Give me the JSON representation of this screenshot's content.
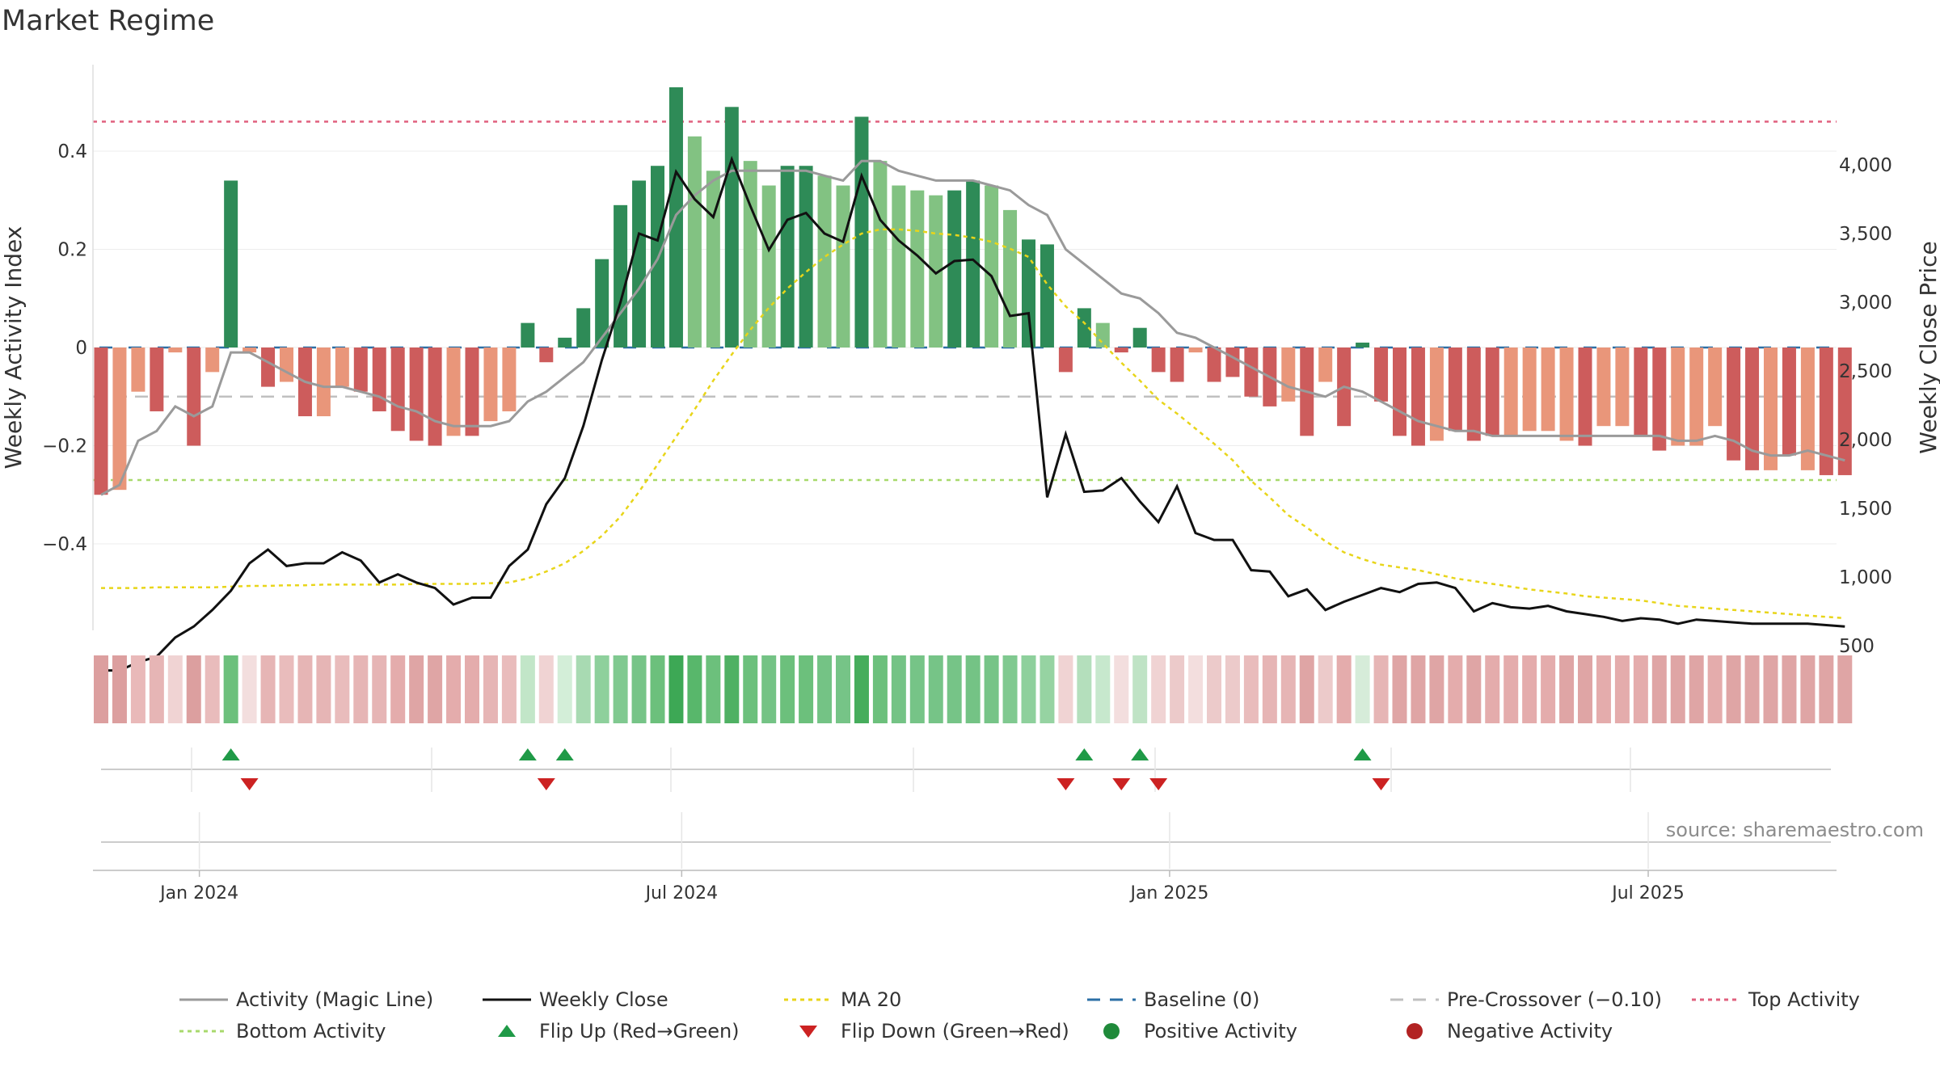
{
  "title": "Market Regime",
  "source": "source: sharemaestro.com",
  "colors": {
    "dark_green": "#2e8b57",
    "light_green": "#82c282",
    "dark_red": "#cd5c5c",
    "light_red": "#e9967a",
    "magic_line": "#9a9a9a",
    "weekly_close": "#111111",
    "ma20": "#e8d51a",
    "baseline": "#2b6fa6",
    "pre_crossover": "#c0c0c0",
    "top_activity": "#e0607e",
    "bottom_activity": "#a8d96c",
    "flip_up": "#1f9a47",
    "flip_down": "#cc2222",
    "positive": "#1f8a3a",
    "negative": "#b22222"
  },
  "chart_data": {
    "type": "bar",
    "title": "Market Regime",
    "ylabel_left": "Weekly Activity Index",
    "ylabel_right": "Weekly Close Price",
    "ylim_left": [
      -0.57,
      0.57
    ],
    "ylim_right": [
      0,
      4300
    ],
    "yticks_left": [
      0.4,
      0.2,
      0,
      -0.2,
      -0.4
    ],
    "yticks_left_labels": [
      "0.4",
      "0.2",
      "0",
      "−0.2",
      "−0.4"
    ],
    "yticks_right": [
      4000,
      3500,
      3000,
      2500,
      2000,
      1500,
      1000,
      500
    ],
    "yticks_right_labels": [
      "4,000",
      "3,500",
      "3,000",
      "2,500",
      "2,000",
      "1,500",
      "1,000",
      "500"
    ],
    "x_tick_labels": [
      "Jan 2024",
      "Jul 2024",
      "Jan 2025",
      "Jul 2025"
    ],
    "x_tick_weeks": [
      5.3,
      31.3,
      57.6,
      83.4
    ],
    "top_activity": 0.46,
    "bottom_activity": -0.27,
    "baseline": 0,
    "pre_crossover": -0.1,
    "activity": [
      -0.3,
      -0.29,
      -0.09,
      -0.13,
      -0.01,
      -0.2,
      -0.05,
      0.34,
      -0.01,
      -0.08,
      -0.07,
      -0.14,
      -0.14,
      -0.08,
      -0.09,
      -0.13,
      -0.17,
      -0.19,
      -0.2,
      -0.18,
      -0.18,
      -0.15,
      -0.13,
      0.05,
      -0.03,
      0.02,
      0.08,
      0.18,
      0.29,
      0.34,
      0.37,
      0.53,
      0.43,
      0.36,
      0.49,
      0.38,
      0.33,
      0.37,
      0.37,
      0.35,
      0.33,
      0.47,
      0.38,
      0.33,
      0.32,
      0.31,
      0.32,
      0.34,
      0.33,
      0.28,
      0.22,
      0.21,
      -0.05,
      0.08,
      0.05,
      -0.01,
      0.04,
      -0.05,
      -0.07,
      -0.01,
      -0.07,
      -0.06,
      -0.1,
      -0.12,
      -0.11,
      -0.18,
      -0.07,
      -0.16,
      0.01,
      -0.11,
      -0.18,
      -0.2,
      -0.19,
      -0.17,
      -0.19,
      -0.18,
      -0.18,
      -0.17,
      -0.17,
      -0.19,
      -0.2,
      -0.16,
      -0.16,
      -0.18,
      -0.21,
      -0.2,
      -0.2,
      -0.16,
      -0.23,
      -0.25,
      -0.25,
      -0.22,
      -0.25,
      -0.26,
      -0.26
    ],
    "shade": [
      "dark",
      "light",
      "light",
      "dark",
      "light",
      "dark",
      "light",
      "dark",
      "light",
      "dark",
      "light",
      "dark",
      "light",
      "light",
      "dark",
      "dark",
      "dark",
      "dark",
      "dark",
      "light",
      "dark",
      "light",
      "light",
      "dark",
      "dark",
      "dark",
      "dark",
      "dark",
      "dark",
      "dark",
      "dark",
      "dark",
      "light",
      "light",
      "dark",
      "light",
      "light",
      "dark",
      "dark",
      "light",
      "light",
      "dark",
      "light",
      "light",
      "light",
      "light",
      "dark",
      "dark",
      "light",
      "light",
      "dark",
      "dark",
      "dark",
      "dark",
      "light",
      "dark",
      "dark",
      "dark",
      "dark",
      "light",
      "dark",
      "dark",
      "dark",
      "dark",
      "light",
      "dark",
      "light",
      "dark",
      "dark",
      "dark",
      "dark",
      "dark",
      "light",
      "dark",
      "dark",
      "dark",
      "light",
      "light",
      "light",
      "light",
      "dark",
      "light",
      "light",
      "dark",
      "dark",
      "light",
      "light",
      "light",
      "dark",
      "dark",
      "light",
      "dark",
      "light",
      "dark",
      "dark",
      "light"
    ],
    "magic_line": [
      -0.3,
      -0.28,
      -0.19,
      -0.17,
      -0.12,
      -0.14,
      -0.12,
      -0.01,
      -0.01,
      -0.03,
      -0.05,
      -0.07,
      -0.08,
      -0.08,
      -0.09,
      -0.1,
      -0.12,
      -0.13,
      -0.15,
      -0.16,
      -0.16,
      -0.16,
      -0.15,
      -0.11,
      -0.09,
      -0.06,
      -0.03,
      0.02,
      0.07,
      0.12,
      0.18,
      0.27,
      0.31,
      0.34,
      0.36,
      0.36,
      0.36,
      0.36,
      0.36,
      0.35,
      0.34,
      0.38,
      0.38,
      0.36,
      0.35,
      0.34,
      0.34,
      0.34,
      0.33,
      0.32,
      0.29,
      0.27,
      0.2,
      0.17,
      0.14,
      0.11,
      0.1,
      0.07,
      0.03,
      0.02,
      0,
      -0.02,
      -0.04,
      -0.06,
      -0.08,
      -0.09,
      -0.1,
      -0.08,
      -0.09,
      -0.11,
      -0.13,
      -0.15,
      -0.16,
      -0.17,
      -0.17,
      -0.18,
      -0.18,
      -0.18,
      -0.18,
      -0.18,
      -0.18,
      -0.18,
      -0.18,
      -0.18,
      -0.18,
      -0.19,
      -0.19,
      -0.18,
      -0.19,
      -0.21,
      -0.22,
      -0.22,
      -0.21,
      -0.22,
      -0.23
    ],
    "weekly_close": [
      320,
      320,
      380,
      420,
      560,
      640,
      760,
      900,
      1100,
      1200,
      1080,
      1100,
      1100,
      1180,
      1120,
      960,
      1020,
      960,
      920,
      800,
      850,
      850,
      1080,
      1200,
      1530,
      1720,
      2100,
      2580,
      3000,
      3500,
      3450,
      3950,
      3750,
      3620,
      4040,
      3700,
      3380,
      3600,
      3650,
      3500,
      3440,
      3920,
      3600,
      3450,
      3340,
      3210,
      3300,
      3310,
      3190,
      2900,
      2920,
      1580,
      2040,
      1620,
      1630,
      1720,
      1550,
      1400,
      1660,
      1320,
      1270,
      1270,
      1050,
      1040,
      860,
      910,
      760,
      820,
      870,
      920,
      890,
      950,
      960,
      920,
      750,
      810,
      780,
      770,
      790,
      750,
      730,
      710,
      680,
      700,
      690,
      660,
      690,
      680,
      670,
      660,
      660,
      660,
      660,
      650,
      640
    ],
    "ma20": [
      920,
      920,
      920,
      925,
      925,
      925,
      925,
      930,
      935,
      935,
      940,
      940,
      945,
      945,
      945,
      945,
      945,
      950,
      950,
      950,
      950,
      955,
      960,
      990,
      1040,
      1100,
      1190,
      1300,
      1440,
      1620,
      1820,
      2020,
      2220,
      2430,
      2620,
      2800,
      2960,
      3100,
      3220,
      3330,
      3420,
      3500,
      3530,
      3530,
      3520,
      3500,
      3490,
      3470,
      3440,
      3390,
      3330,
      3130,
      2970,
      2850,
      2700,
      2560,
      2430,
      2290,
      2190,
      2080,
      1970,
      1850,
      1700,
      1580,
      1450,
      1360,
      1260,
      1180,
      1130,
      1090,
      1070,
      1050,
      1020,
      990,
      970,
      950,
      930,
      910,
      895,
      880,
      860,
      850,
      840,
      830,
      810,
      790,
      780,
      770,
      760,
      750,
      740,
      730,
      720,
      710,
      700
    ],
    "strip_colors": [
      "#dc9f9f",
      "#dc9f9f",
      "#e9b9b9",
      "#e6b5b5",
      "#f0d3d3",
      "#dc9f9f",
      "#e9bcbc",
      "#6cc07c",
      "#f3dede",
      "#e6b5b5",
      "#e9bcbc",
      "#e6b5b5",
      "#e6b5b5",
      "#e9bcbc",
      "#e6b5b5",
      "#e6b5b5",
      "#e4acac",
      "#dfa5a5",
      "#dfa5a5",
      "#e4acac",
      "#e4acac",
      "#e6b5b5",
      "#e9bcbc",
      "#c2e6c8",
      "#f0d3d3",
      "#d3eed8",
      "#a8dab2",
      "#8ed09c",
      "#80c990",
      "#76c487",
      "#6cc07c",
      "#3da855",
      "#58b76b",
      "#6cc07c",
      "#4fb163",
      "#6cc07c",
      "#74c385",
      "#6cc07c",
      "#6cc07c",
      "#74c385",
      "#76c487",
      "#46ad5c",
      "#6cc07c",
      "#74c385",
      "#76c487",
      "#76c487",
      "#76c487",
      "#74c385",
      "#76c487",
      "#80c990",
      "#8ed09c",
      "#96d3a2",
      "#f0d3d3",
      "#b4dfbc",
      "#c7e8cd",
      "#f3dede",
      "#bfe3c5",
      "#f0d3d3",
      "#eccaca",
      "#f3dede",
      "#eccaca",
      "#eccaca",
      "#e9bcbc",
      "#e6b5b5",
      "#e6b5b5",
      "#dfa5a5",
      "#eccaca",
      "#e4acac",
      "#d6ecd9",
      "#e6b5b5",
      "#dfa5a5",
      "#dfa5a5",
      "#dfa5a5",
      "#e4acac",
      "#dfa5a5",
      "#e4acac",
      "#e4acac",
      "#e4acac",
      "#e4acac",
      "#dfa5a5",
      "#dfa5a5",
      "#e4acac",
      "#e4acac",
      "#e4acac",
      "#dfa5a5",
      "#dfa5a5",
      "#dfa5a5",
      "#e4acac",
      "#dfa5a5",
      "#dfa5a5",
      "#dfa5a5",
      "#dfa5a5",
      "#dfa5a5",
      "#dfa5a5",
      "#dfa5a5"
    ],
    "flip_up_weeks": [
      7,
      23,
      25,
      53,
      56,
      68
    ],
    "flip_down_weeks": [
      8,
      24,
      52,
      55,
      57,
      69
    ],
    "legend": [
      "Activity (Magic Line)",
      "Weekly Close",
      "MA 20",
      "Baseline (0)",
      "Pre-Crossover (−0.10)",
      "Top Activity",
      "Bottom Activity",
      "Flip Up (Red→Green)",
      "Flip Down (Green→Red)",
      "Positive Activity",
      "Negative Activity"
    ]
  }
}
